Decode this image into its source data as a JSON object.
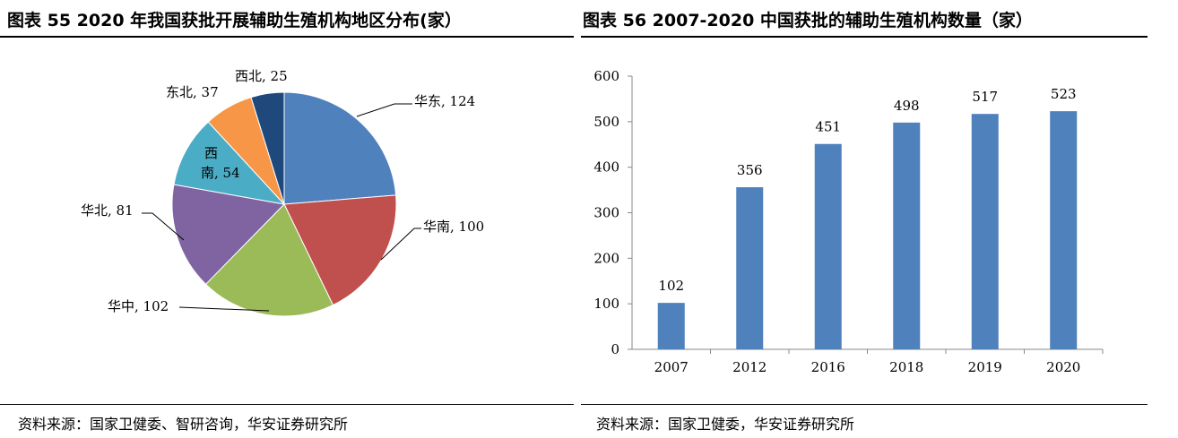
{
  "left": {
    "title": "图表 55 2020 年我国获批开展辅助生殖机构地区分布(家）",
    "source": "资料来源：国家卫健委、智研咨询，华安证券研究所"
  },
  "right": {
    "title": "图表 56 2007-2020 中国获批的辅助生殖机构数量（家）",
    "source": "资料来源：国家卫健委，华安证券研究所"
  },
  "chart_data": [
    {
      "type": "pie",
      "title": "图表 55 2020 年我国获批开展辅助生殖机构地区分布(家）",
      "categories": [
        "华东",
        "华南",
        "华中",
        "华北",
        "西南",
        "东北",
        "西北"
      ],
      "values": [
        124,
        100,
        102,
        81,
        54,
        37,
        25
      ],
      "labels": [
        "华东, 124",
        "华南, 100",
        "华中, 102",
        "华北, 81",
        "西南, 54",
        "东北, 37",
        "西北, 25"
      ],
      "colors": [
        "#4F81BD",
        "#C0504D",
        "#9BBB59",
        "#8064A2",
        "#4BACC6",
        "#F79646",
        "#1F497D"
      ]
    },
    {
      "type": "bar",
      "title": "图表 56 2007-2020 中国获批的辅助生殖机构数量（家）",
      "categories": [
        "2007",
        "2012",
        "2016",
        "2018",
        "2019",
        "2020"
      ],
      "values": [
        102,
        356,
        451,
        498,
        517,
        523
      ],
      "ylim": [
        0,
        600
      ],
      "yticks": [
        "0",
        "100",
        "200",
        "300",
        "400",
        "500",
        "600"
      ],
      "color": "#4F81BD",
      "grid": false
    }
  ]
}
